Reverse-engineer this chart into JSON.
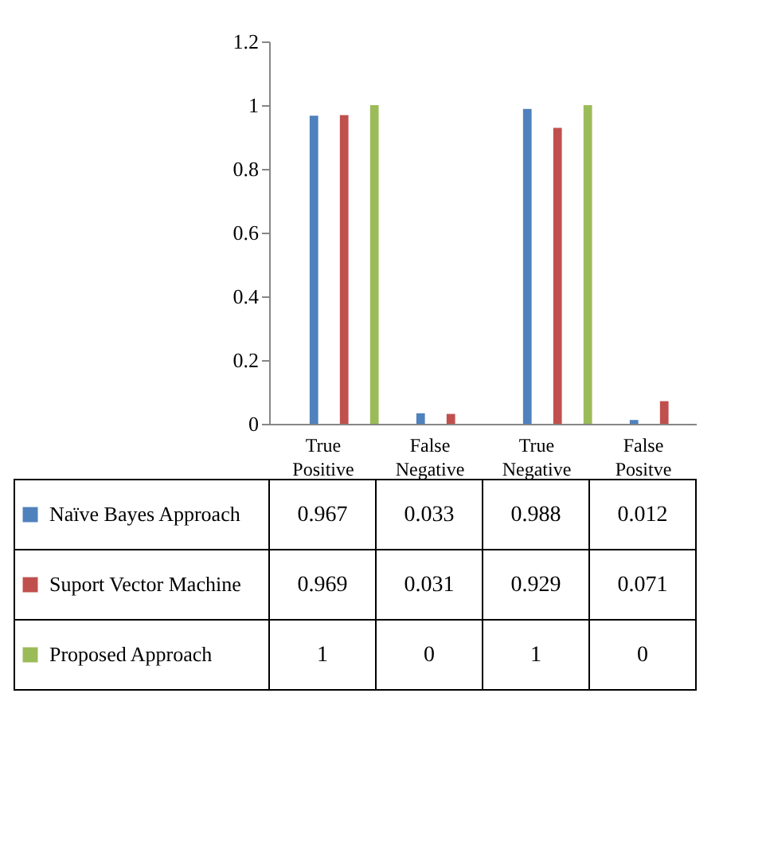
{
  "chart_data": {
    "type": "bar",
    "categories": [
      "True Positive",
      "False Negative",
      "True Negative",
      "False Positve"
    ],
    "series": [
      {
        "name": "Naïve Bayes Approach",
        "color": "#4f81bd",
        "values": [
          0.967,
          0.033,
          0.988,
          0.012
        ]
      },
      {
        "name": "Suport Vector Machine",
        "color": "#c0504d",
        "values": [
          0.969,
          0.031,
          0.929,
          0.071
        ]
      },
      {
        "name": "Proposed Approach",
        "color": "#9bbb59",
        "values": [
          1,
          0,
          1,
          0
        ]
      }
    ],
    "ylim": [
      0,
      1.2
    ],
    "yticks": [
      0,
      0.2,
      0.4,
      0.6,
      0.8,
      1,
      1.2
    ],
    "grid": false,
    "legend": "bottom",
    "data_labels": true
  }
}
